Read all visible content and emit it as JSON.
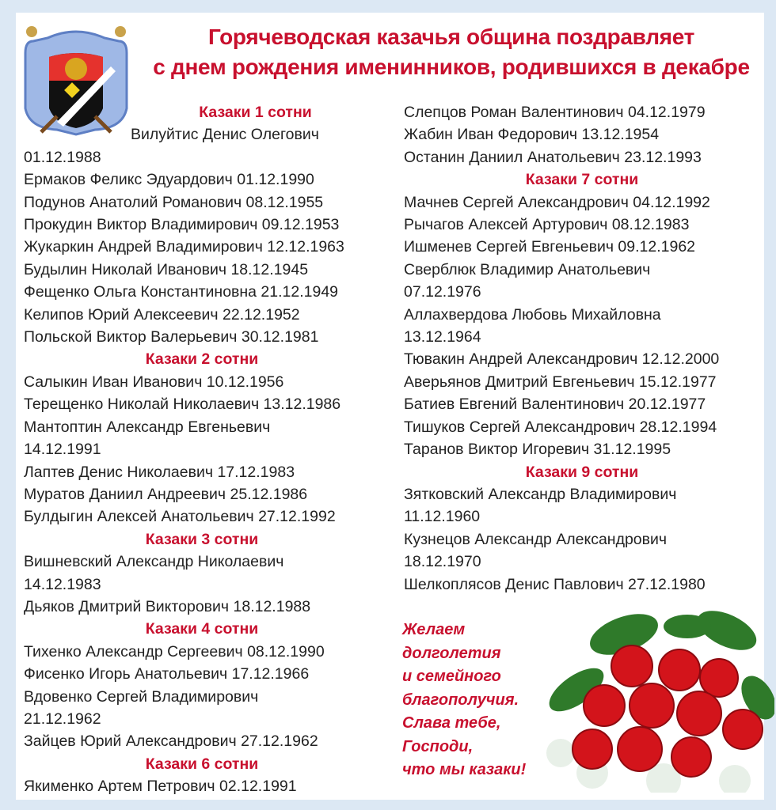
{
  "header": {
    "title_line1": "Горячеводская казачья община поздравляет",
    "title_line2": "с днем рождения именинников, родившихся в декабре"
  },
  "colors": {
    "accent": "#c8102e",
    "text": "#222222",
    "frame": "#dce8f4"
  },
  "column_left": [
    {
      "heading": "Казаки 1 сотни",
      "entries": [
        "Вилуйтис Денис Олегович\n01.12.1988",
        "Ермаков Феликс Эдуардович 01.12.1990",
        "Подунов Анатолий Романович 08.12.1955",
        "Прокудин Виктор Владимирович 09.12.1953",
        "Жукаркин Андрей Владимирович 12.12.1963",
        "Будылин Николай Иванович 18.12.1945",
        "Фещенко Ольга Константиновна 21.12.1949",
        "Келипов Юрий Алексеевич 22.12.1952",
        "Польской Виктор Валерьевич 30.12.1981"
      ]
    },
    {
      "heading": "Казаки 2 сотни",
      "entries": [
        "Салыкин Иван Иванович 10.12.1956",
        "Терещенко Николай Николаевич 13.12.1986",
        "Мантоптин Александр Евгеньевич\n14.12.1991",
        "Лаптев Денис Николаевич 17.12.1983",
        "Муратов Даниил Андреевич 25.12.1986",
        "Булдыгин Алексей Анатольевич 27.12.1992"
      ]
    },
    {
      "heading": "Казаки 3 сотни",
      "entries": [
        "Вишневский Александр Николаевич\n14.12.1983",
        "Дьяков Дмитрий Викторович 18.12.1988"
      ]
    },
    {
      "heading": "Казаки 4 сотни",
      "entries": [
        "Тихенко Александр Сергеевич 08.12.1990",
        "Фисенко Игорь Анатольевич 17.12.1966",
        "Вдовенко Сергей Владимирович\n21.12.1962",
        "Зайцев Юрий Александрович 27.12.1962"
      ]
    },
    {
      "heading": "Казаки 6 сотни",
      "entries": [
        "Якименко Артем Петрович 02.12.1991"
      ]
    }
  ],
  "column_right": [
    {
      "heading": "",
      "entries": [
        "Слепцов Роман Валентинович 04.12.1979",
        "Жабин Иван Федорович 13.12.1954",
        "Останин Даниил Анатольевич 23.12.1993"
      ]
    },
    {
      "heading": "Казаки 7 сотни",
      "entries": [
        "Мачнев Сергей Александрович 04.12.1992",
        "Рычагов Алексей Артурович 08.12.1983",
        "Ишменев Сергей Евгеньевич 09.12.1962",
        "Сверблюк Владимир Анатольевич\n07.12.1976",
        "Аллахвердова Любовь Михайловна\n13.12.1964",
        "Тювакин Андрей Александрович 12.12.2000",
        "Аверьянов Дмитрий Евгеньевич 15.12.1977",
        "Батиев Евгений Валентинович 20.12.1977",
        "Тишуков Сергей Александрович 28.12.1994",
        "Таранов Виктор Игоревич 31.12.1995"
      ]
    },
    {
      "heading": "Казаки 9 сотни",
      "entries": [
        "Зятковский Александр Владимирович\n11.12.1960",
        "Кузнецов Александр Александрович\n18.12.1970",
        "Шелкоплясов Денис Павлович 27.12.1980"
      ]
    }
  ],
  "wish": "Желаем\nдолголетия\nи семейного\nблагополучия.\nСлава тебе,\nГосподи,\nчто мы казаки!",
  "images": {
    "emblem": "cossack-coat-of-arms",
    "flowers": "red-roses-bouquet"
  }
}
